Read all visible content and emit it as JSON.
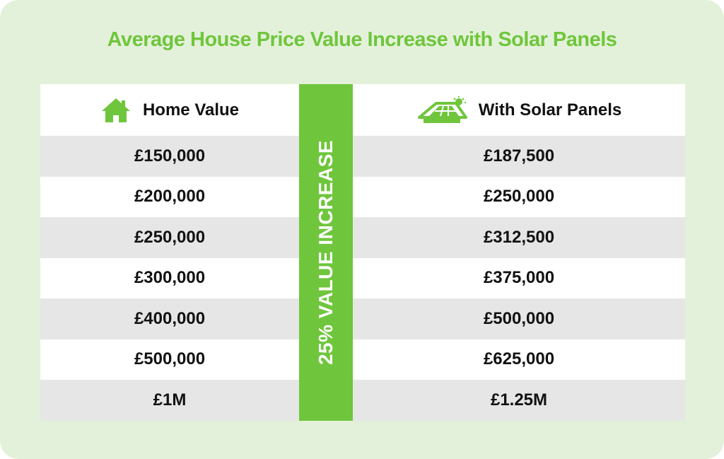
{
  "colors": {
    "accent": "#6fc63c",
    "background": "#e4f1da",
    "stripe": "#e6e6e6"
  },
  "chart_data": {
    "type": "table",
    "title": "Average House Price Value Increase with Solar Panels",
    "columns": [
      {
        "header": "Home Value",
        "icon": "house-icon"
      },
      {
        "header": "With Solar Panels",
        "icon": "solar-roof-icon"
      }
    ],
    "band_label": "25% VALUE INCREASE",
    "rows": [
      [
        "£150,000",
        "£187,500"
      ],
      [
        "£200,000",
        "£250,000"
      ],
      [
        "£250,000",
        "£312,500"
      ],
      [
        "£300,000",
        "£375,000"
      ],
      [
        "£400,000",
        "£500,000"
      ],
      [
        "£500,000",
        "£625,000"
      ],
      [
        "£1M",
        "£1.25M"
      ]
    ]
  }
}
